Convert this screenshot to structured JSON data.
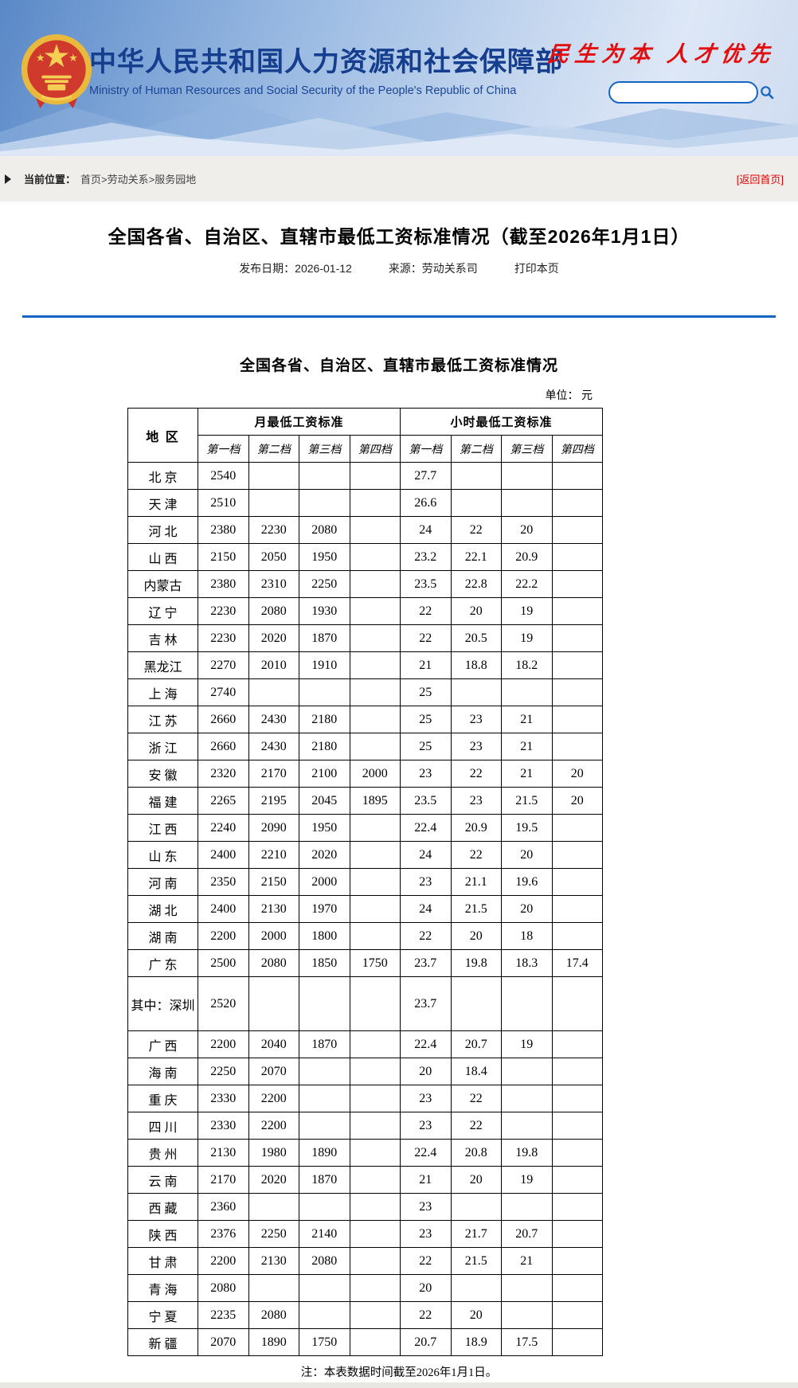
{
  "header": {
    "site_title_zh": "中华人民共和国人力资源和社会保障部",
    "site_title_en": "Ministry of Human Resources and Social Security of the People's Republic of China",
    "slogan": "民生为本 人才优先",
    "search_value": ""
  },
  "breadcrumb": {
    "label": "当前位置：",
    "path": "首页>劳动关系>服务园地",
    "return_home": "[返回首页]"
  },
  "article": {
    "title": "全国各省、自治区、直辖市最低工资标准情况（截至2026年1月1日）",
    "publish_date": "发布日期：2026-01-12",
    "source": "来源：劳动关系司",
    "print_label": "打印本页"
  },
  "colors": {
    "banner_title_blue": "#153e8e",
    "slogan_red": "#e40d0d",
    "rule_blue": "#1565c0",
    "return_link_red": "#e60000"
  },
  "icons": {
    "search_icon": "magnifier (circle + handle)",
    "breadcrumb_arrow_icon": "▶",
    "national_emblem": "PRC national emblem (gold on red)"
  },
  "table": {
    "title": "全国各省、自治区、直辖市最低工资标准情况",
    "unit": "单位：  元",
    "region_header": "地 区",
    "monthly_header": "月最低工资标准",
    "hourly_header": "小时最低工资标准",
    "tier_headers": [
      "第一档",
      "第二档",
      "第三档",
      "第四档"
    ],
    "note": "注：本表数据时间截至2026年1月1日。",
    "rows": [
      {
        "region": "北 京",
        "monthly": [
          "2540",
          "",
          "",
          ""
        ],
        "hourly": [
          "27.7",
          "",
          "",
          ""
        ]
      },
      {
        "region": "天 津",
        "monthly": [
          "2510",
          "",
          "",
          ""
        ],
        "hourly": [
          "26.6",
          "",
          "",
          ""
        ]
      },
      {
        "region": "河 北",
        "monthly": [
          "2380",
          "2230",
          "2080",
          ""
        ],
        "hourly": [
          "24",
          "22",
          "20",
          ""
        ]
      },
      {
        "region": "山 西",
        "monthly": [
          "2150",
          "2050",
          "1950",
          ""
        ],
        "hourly": [
          "23.2",
          "22.1",
          "20.9",
          ""
        ]
      },
      {
        "region": "内蒙古",
        "monthly": [
          "2380",
          "2310",
          "2250",
          ""
        ],
        "hourly": [
          "23.5",
          "22.8",
          "22.2",
          ""
        ]
      },
      {
        "region": "辽 宁",
        "monthly": [
          "2230",
          "2080",
          "1930",
          ""
        ],
        "hourly": [
          "22",
          "20",
          "19",
          ""
        ]
      },
      {
        "region": "吉 林",
        "monthly": [
          "2230",
          "2020",
          "1870",
          ""
        ],
        "hourly": [
          "22",
          "20.5",
          "19",
          ""
        ]
      },
      {
        "region": "黑龙江",
        "monthly": [
          "2270",
          "2010",
          "1910",
          ""
        ],
        "hourly": [
          "21",
          "18.8",
          "18.2",
          ""
        ]
      },
      {
        "region": "上 海",
        "monthly": [
          "2740",
          "",
          "",
          ""
        ],
        "hourly": [
          "25",
          "",
          "",
          ""
        ]
      },
      {
        "region": "江 苏",
        "monthly": [
          "2660",
          "2430",
          "2180",
          ""
        ],
        "hourly": [
          "25",
          "23",
          "21",
          ""
        ]
      },
      {
        "region": "浙 江",
        "monthly": [
          "2660",
          "2430",
          "2180",
          ""
        ],
        "hourly": [
          "25",
          "23",
          "21",
          ""
        ]
      },
      {
        "region": "安 徽",
        "monthly": [
          "2320",
          "2170",
          "2100",
          "2000"
        ],
        "hourly": [
          "23",
          "22",
          "21",
          "20"
        ]
      },
      {
        "region": "福 建",
        "monthly": [
          "2265",
          "2195",
          "2045",
          "1895"
        ],
        "hourly": [
          "23.5",
          "23",
          "21.5",
          "20"
        ]
      },
      {
        "region": "江 西",
        "monthly": [
          "2240",
          "2090",
          "1950",
          ""
        ],
        "hourly": [
          "22.4",
          "20.9",
          "19.5",
          ""
        ]
      },
      {
        "region": "山 东",
        "monthly": [
          "2400",
          "2210",
          "2020",
          ""
        ],
        "hourly": [
          "24",
          "22",
          "20",
          ""
        ]
      },
      {
        "region": "河 南",
        "monthly": [
          "2350",
          "2150",
          "2000",
          ""
        ],
        "hourly": [
          "23",
          "21.1",
          "19.6",
          ""
        ]
      },
      {
        "region": "湖 北",
        "monthly": [
          "2400",
          "2130",
          "1970",
          ""
        ],
        "hourly": [
          "24",
          "21.5",
          "20",
          ""
        ]
      },
      {
        "region": "湖 南",
        "monthly": [
          "2200",
          "2000",
          "1800",
          ""
        ],
        "hourly": [
          "22",
          "20",
          "18",
          ""
        ]
      },
      {
        "region": "广 东",
        "monthly": [
          "2500",
          "2080",
          "1850",
          "1750"
        ],
        "hourly": [
          "23.7",
          "19.8",
          "18.3",
          "17.4"
        ]
      },
      {
        "region": "其中：深圳",
        "tall": true,
        "monthly": [
          "2520",
          "",
          "",
          ""
        ],
        "hourly": [
          "23.7",
          "",
          "",
          ""
        ]
      },
      {
        "region": "广 西",
        "monthly": [
          "2200",
          "2040",
          "1870",
          ""
        ],
        "hourly": [
          "22.4",
          "20.7",
          "19",
          ""
        ]
      },
      {
        "region": "海 南",
        "monthly": [
          "2250",
          "2070",
          "",
          ""
        ],
        "hourly": [
          "20",
          "18.4",
          "",
          ""
        ]
      },
      {
        "region": "重 庆",
        "monthly": [
          "2330",
          "2200",
          "",
          ""
        ],
        "hourly": [
          "23",
          "22",
          "",
          ""
        ]
      },
      {
        "region": "四 川",
        "monthly": [
          "2330",
          "2200",
          "",
          ""
        ],
        "hourly": [
          "23",
          "22",
          "",
          ""
        ]
      },
      {
        "region": "贵 州",
        "monthly": [
          "2130",
          "1980",
          "1890",
          ""
        ],
        "hourly": [
          "22.4",
          "20.8",
          "19.8",
          ""
        ]
      },
      {
        "region": "云 南",
        "monthly": [
          "2170",
          "2020",
          "1870",
          ""
        ],
        "hourly": [
          "21",
          "20",
          "19",
          ""
        ]
      },
      {
        "region": "西 藏",
        "monthly": [
          "2360",
          "",
          "",
          ""
        ],
        "hourly": [
          "23",
          "",
          "",
          ""
        ]
      },
      {
        "region": "陕 西",
        "monthly": [
          "2376",
          "2250",
          "2140",
          ""
        ],
        "hourly": [
          "23",
          "21.7",
          "20.7",
          ""
        ]
      },
      {
        "region": "甘 肃",
        "monthly": [
          "2200",
          "2130",
          "2080",
          ""
        ],
        "hourly": [
          "22",
          "21.5",
          "21",
          ""
        ]
      },
      {
        "region": "青 海",
        "monthly": [
          "2080",
          "",
          "",
          ""
        ],
        "hourly": [
          "20",
          "",
          "",
          ""
        ]
      },
      {
        "region": "宁 夏",
        "monthly": [
          "2235",
          "2080",
          "",
          ""
        ],
        "hourly": [
          "22",
          "20",
          "",
          ""
        ]
      },
      {
        "region": "新 疆",
        "monthly": [
          "2070",
          "1890",
          "1750",
          ""
        ],
        "hourly": [
          "20.7",
          "18.9",
          "17.5",
          ""
        ]
      }
    ]
  }
}
